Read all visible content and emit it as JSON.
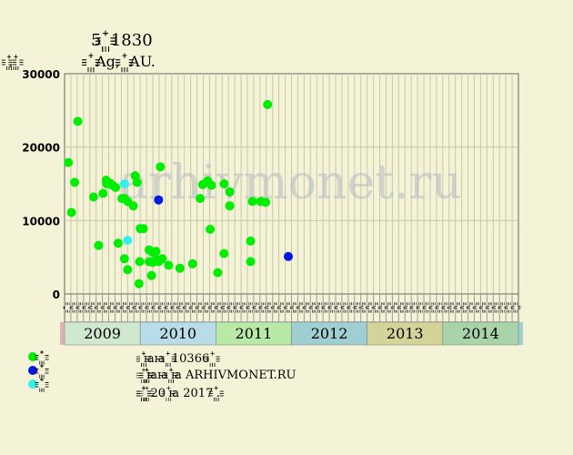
{
  "chart_data": {
    "type": "scatter",
    "title": "5 ꙲꙲꙲ 1830",
    "subtitle": "꙲꙲꙲ Ag, ꙲꙲꙲ AU.",
    "ylabel": "꙲꙲, ꙲꙲",
    "ylim": [
      0,
      30000
    ],
    "yticks": [
      0,
      10000,
      20000,
      30000
    ],
    "grid": true,
    "month_labels": [
      "꙲꙲",
      "꙲꙲",
      "꙲꙲",
      "꙲꙲",
      "꙲꙲",
      "꙲꙲",
      "꙲꙲",
      "꙲꙲",
      "꙲꙲",
      "꙲꙲",
      "꙲꙲",
      "꙲꙲"
    ],
    "years": [
      {
        "label": "2009",
        "color": "#cfe9cf"
      },
      {
        "label": "2010",
        "color": "#b8dde9"
      },
      {
        "label": "2011",
        "color": "#b9e9a6"
      },
      {
        "label": "2012",
        "color": "#9fcfd3"
      },
      {
        "label": "2013",
        "color": "#d3d39a"
      },
      {
        "label": "2014",
        "color": "#a9d3a9"
      }
    ],
    "series": [
      {
        "name": "꙲꙲꙲",
        "color": "#00ee00",
        "points": [
          {
            "x": 0.1,
            "y": 17900
          },
          {
            "x": 0.6,
            "y": 11100
          },
          {
            "x": 1.1,
            "y": 15200
          },
          {
            "x": 1.6,
            "y": 23500
          },
          {
            "x": 4.1,
            "y": 13200
          },
          {
            "x": 4.9,
            "y": 6600
          },
          {
            "x": 5.6,
            "y": 13700
          },
          {
            "x": 6.1,
            "y": 15500
          },
          {
            "x": 6.2,
            "y": 15000
          },
          {
            "x": 6.7,
            "y": 15100
          },
          {
            "x": 7.1,
            "y": 14800
          },
          {
            "x": 7.6,
            "y": 14500
          },
          {
            "x": 8.0,
            "y": 6900
          },
          {
            "x": 8.6,
            "y": 13000
          },
          {
            "x": 9.0,
            "y": 13000
          },
          {
            "x": 9.0,
            "y": 4800
          },
          {
            "x": 9.5,
            "y": 12600
          },
          {
            "x": 9.5,
            "y": 3300
          },
          {
            "x": 10.4,
            "y": 12000
          },
          {
            "x": 10.7,
            "y": 16100
          },
          {
            "x": 11.0,
            "y": 15200
          },
          {
            "x": 11.3,
            "y": 1400
          },
          {
            "x": 11.4,
            "y": 4400
          },
          {
            "x": 11.5,
            "y": 8900
          },
          {
            "x": 12.0,
            "y": 8900
          },
          {
            "x": 12.9,
            "y": 6000
          },
          {
            "x": 12.9,
            "y": 4400
          },
          {
            "x": 13.3,
            "y": 2500
          },
          {
            "x": 13.4,
            "y": 5700
          },
          {
            "x": 13.5,
            "y": 4300
          },
          {
            "x": 14.0,
            "y": 5800
          },
          {
            "x": 14.0,
            "y": 4700
          },
          {
            "x": 14.4,
            "y": 4400
          },
          {
            "x": 14.7,
            "y": 17300
          },
          {
            "x": 15.0,
            "y": 4800
          },
          {
            "x": 16.0,
            "y": 3900
          },
          {
            "x": 17.8,
            "y": 3500
          },
          {
            "x": 19.8,
            "y": 4100
          },
          {
            "x": 21.0,
            "y": 13000
          },
          {
            "x": 21.4,
            "y": 14900
          },
          {
            "x": 22.2,
            "y": 15400
          },
          {
            "x": 22.6,
            "y": 8800
          },
          {
            "x": 22.8,
            "y": 14800
          },
          {
            "x": 23.8,
            "y": 2900
          },
          {
            "x": 24.8,
            "y": 5500
          },
          {
            "x": 24.8,
            "y": 15000
          },
          {
            "x": 25.7,
            "y": 13900
          },
          {
            "x": 25.7,
            "y": 12000
          },
          {
            "x": 29.0,
            "y": 7200
          },
          {
            "x": 29.0,
            "y": 4400
          },
          {
            "x": 29.3,
            "y": 12600
          },
          {
            "x": 30.6,
            "y": 12600
          },
          {
            "x": 31.4,
            "y": 12500
          },
          {
            "x": 31.7,
            "y": 25800
          }
        ]
      },
      {
        "name": "꙲꙲꙲",
        "color": "#0018e0",
        "points": [
          {
            "x": 14.4,
            "y": 12800
          },
          {
            "x": 35.0,
            "y": 5100
          }
        ]
      },
      {
        "name": "꙲꙲꙲",
        "color": "#33f0f0",
        "points": [
          {
            "x": 9.0,
            "y": 15000
          },
          {
            "x": 9.5,
            "y": 7300
          }
        ]
      }
    ],
    "watermark": "arhivmonet.ru",
    "notes": [
      "꙲꙲ꙗꙗ ꙲꙲ 10366 ꙲꙲",
      "꙲ ꙲꙲꙲ꙗꙗ ꙲꙲ꙗ ARHIVMONET.RU",
      "꙲꙲꙲ ꙲ 20 ꙲ꙗ 2017 ꙲꙲."
    ]
  }
}
